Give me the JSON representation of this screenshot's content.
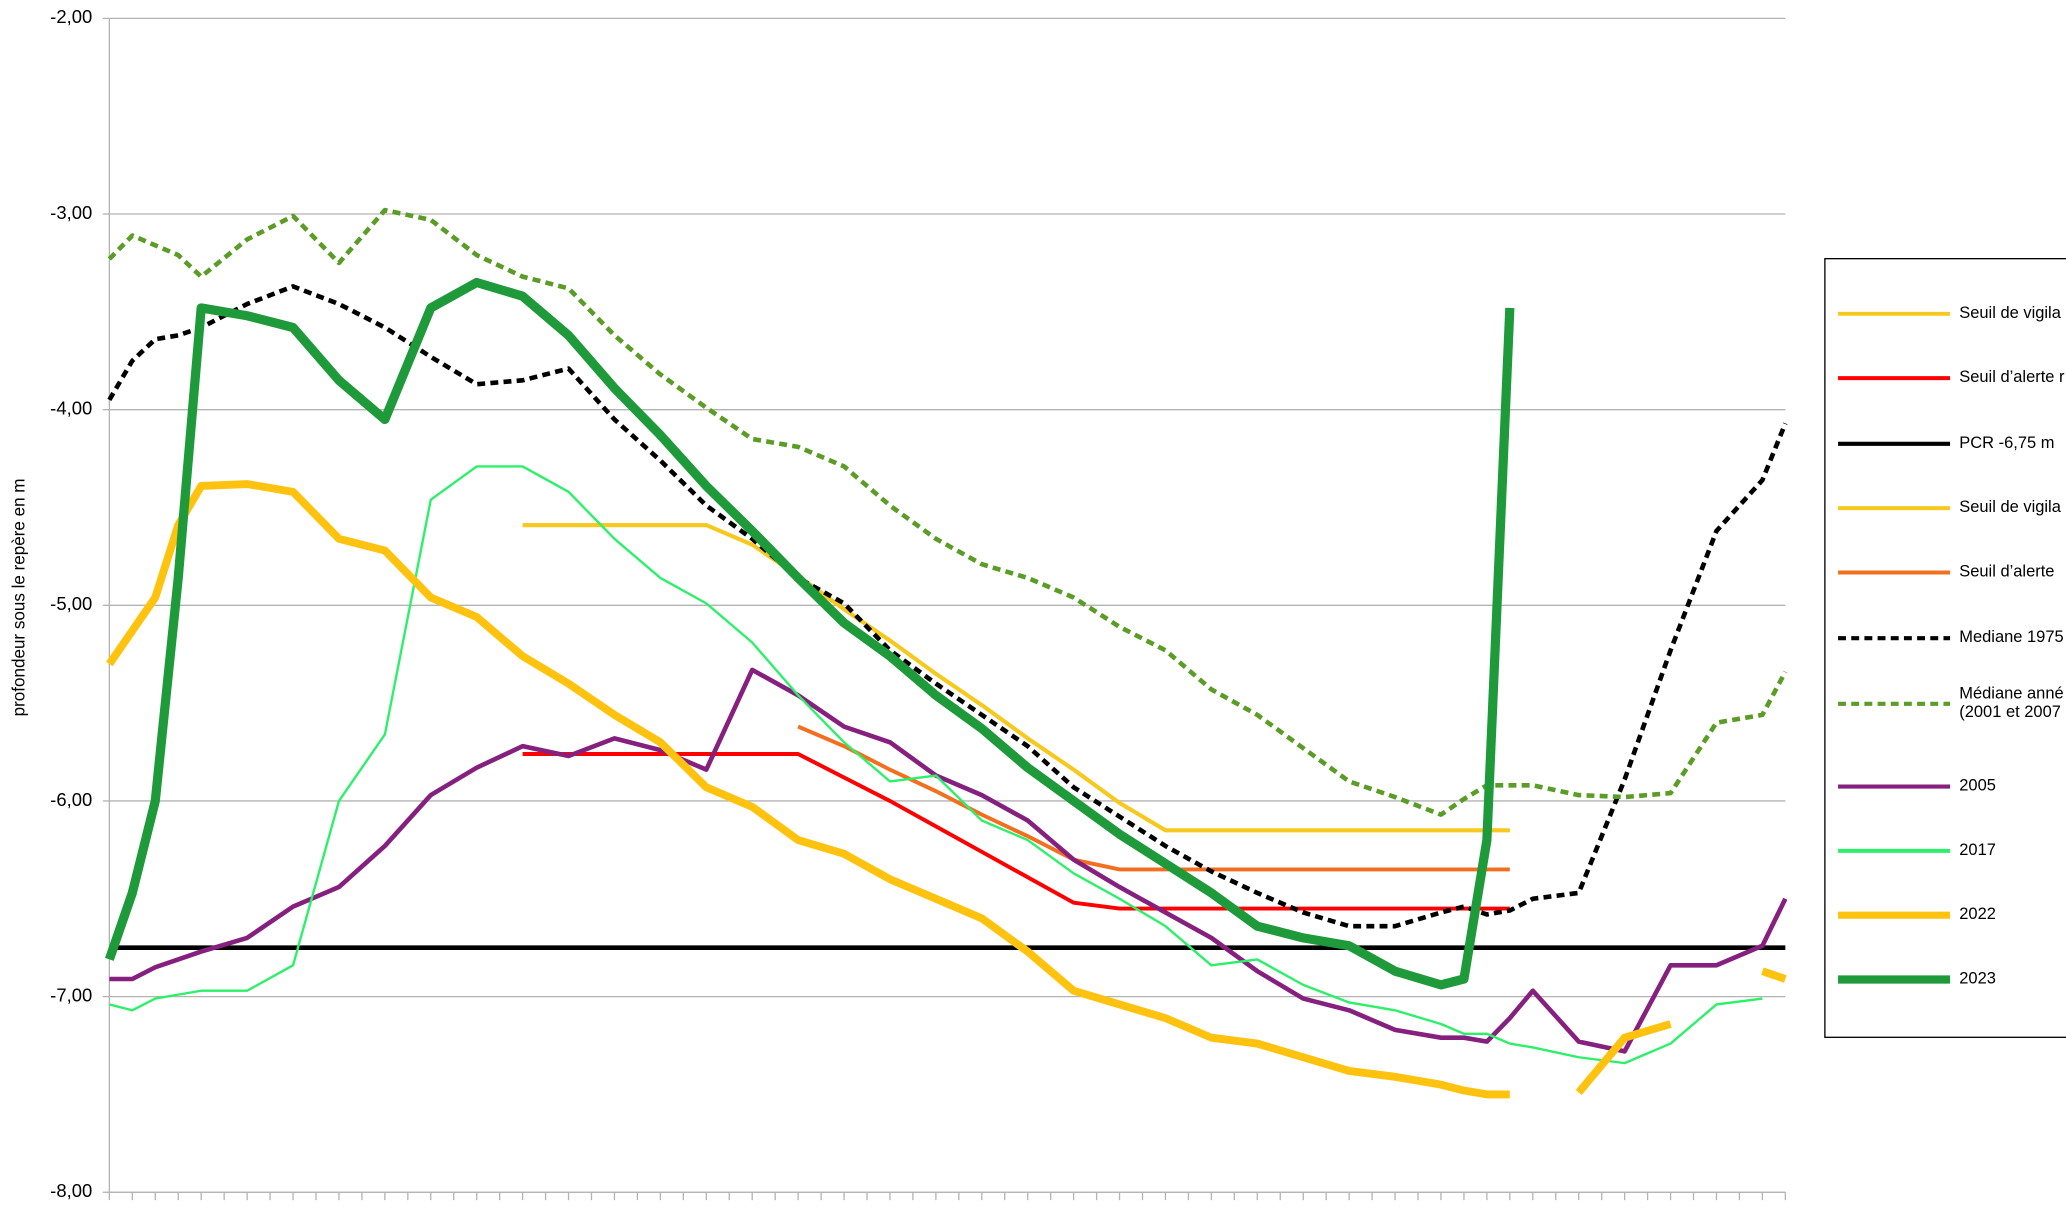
{
  "chart_data": {
    "type": "line",
    "y_label": "profondeur sous le repère en m",
    "x": [
      0,
      5,
      10,
      15,
      20,
      30,
      40,
      50,
      60,
      70,
      80,
      90,
      100,
      110,
      120,
      130,
      140,
      150,
      160,
      170,
      180,
      190,
      200,
      210,
      220,
      230,
      240,
      250,
      260,
      270,
      280,
      290,
      295,
      300,
      305,
      310,
      320,
      330,
      340,
      350,
      360,
      365
    ],
    "xlim": [
      0,
      365
    ],
    "xticks": [
      0,
      5,
      10,
      15,
      20,
      25,
      30,
      35,
      40,
      45,
      50,
      55,
      60,
      65,
      70,
      75,
      80,
      85,
      90,
      95,
      100,
      105,
      110,
      115,
      120,
      125,
      130,
      135,
      140,
      145,
      150,
      155,
      160,
      165,
      170,
      175,
      180,
      185,
      190,
      195,
      200,
      205,
      210,
      215,
      220,
      225,
      230,
      235,
      240,
      245,
      250,
      255,
      260,
      265,
      270,
      275,
      280,
      285,
      290,
      295,
      300,
      305,
      310,
      315,
      320,
      325,
      330,
      335,
      340,
      345,
      350,
      355,
      360,
      365
    ],
    "ylim": [
      -8,
      -2
    ],
    "yticks": [
      {
        "value": -8,
        "label": "-8,00"
      },
      {
        "value": -7,
        "label": "-7,00"
      },
      {
        "value": -6,
        "label": "-6,00"
      },
      {
        "value": -5,
        "label": "-5,00"
      },
      {
        "value": -4,
        "label": "-4,00"
      },
      {
        "value": -3,
        "label": "-3,00"
      },
      {
        "value": -2,
        "label": "-2,00"
      }
    ],
    "grid": true,
    "legend_position": "right",
    "series": [
      {
        "name": "Seuil de vigila",
        "color": "#f7c81e",
        "values": [
          null,
          null,
          null,
          null,
          null,
          null,
          null,
          null,
          null,
          null,
          null,
          -4.59,
          -4.59,
          -4.59,
          -4.59,
          -4.59,
          -4.69,
          -4.85,
          -5.02,
          -5.18,
          -5.35,
          -5.51,
          -5.68,
          -5.84,
          -6.01,
          -6.15,
          -6.15,
          -6.15,
          -6.15,
          -6.15,
          -6.15,
          -6.15,
          -6.15,
          -6.15,
          -6.15,
          null,
          null,
          null,
          null,
          null,
          null,
          null
        ]
      },
      {
        "name": "Seuil d’alerte r",
        "color": "#ff0000",
        "values": [
          null,
          null,
          null,
          null,
          null,
          null,
          null,
          null,
          null,
          null,
          null,
          -5.76,
          -5.76,
          -5.76,
          -5.76,
          -5.76,
          -5.76,
          -5.76,
          -5.88,
          -6.0,
          -6.13,
          -6.26,
          -6.39,
          -6.52,
          -6.55,
          -6.55,
          -6.55,
          -6.55,
          -6.55,
          -6.55,
          -6.55,
          -6.55,
          -6.55,
          -6.55,
          -6.55,
          null,
          null,
          null,
          null,
          null,
          null,
          null
        ]
      },
      {
        "name": "PCR -6,75 m",
        "color": "#000000",
        "values": [
          -6.75,
          -6.75,
          -6.75,
          -6.75,
          -6.75,
          -6.75,
          -6.75,
          -6.75,
          -6.75,
          -6.75,
          -6.75,
          -6.75,
          -6.75,
          -6.75,
          -6.75,
          -6.75,
          -6.75,
          -6.75,
          -6.75,
          -6.75,
          -6.75,
          -6.75,
          -6.75,
          -6.75,
          -6.75,
          -6.75,
          -6.75,
          -6.75,
          -6.75,
          -6.75,
          -6.75,
          -6.75,
          -6.75,
          -6.75,
          -6.75,
          -6.75,
          -6.75,
          -6.75,
          -6.75,
          -6.75,
          -6.75,
          -6.75
        ]
      },
      {
        "name": "Seuil de vigila",
        "color": "#f7c81e",
        "values": [
          null,
          null,
          null,
          null,
          null,
          null,
          null,
          null,
          null,
          null,
          null,
          -4.59,
          -4.59,
          -4.59,
          -4.59,
          -4.59,
          -4.69,
          -4.85,
          -5.02,
          -5.18,
          -5.35,
          -5.51,
          -5.68,
          -5.84,
          -6.01,
          -6.15,
          -6.15,
          -6.15,
          -6.15,
          -6.15,
          -6.15,
          -6.15,
          -6.15,
          -6.15,
          -6.15,
          null,
          null,
          null,
          null,
          null,
          null,
          null
        ]
      },
      {
        "name": "Seuil d’alerte",
        "color": "#f36f20",
        "values": [
          null,
          null,
          null,
          null,
          null,
          null,
          null,
          null,
          null,
          null,
          null,
          null,
          null,
          null,
          null,
          null,
          null,
          -5.62,
          -5.72,
          -5.84,
          -5.95,
          -6.07,
          -6.18,
          -6.3,
          -6.35,
          -6.35,
          -6.35,
          -6.35,
          -6.35,
          -6.35,
          -6.35,
          -6.35,
          -6.35,
          -6.35,
          -6.35,
          null,
          null,
          null,
          null,
          null,
          null,
          null
        ]
      },
      {
        "name": "Mediane 1975",
        "color": "#000000",
        "style": "dashed",
        "values": [
          -3.95,
          -3.75,
          -3.64,
          -3.62,
          -3.58,
          -3.46,
          -3.37,
          -3.46,
          -3.58,
          -3.73,
          -3.87,
          -3.85,
          -3.79,
          -4.05,
          -4.26,
          -4.49,
          -4.66,
          -4.86,
          -4.99,
          -5.23,
          -5.4,
          -5.56,
          -5.72,
          -5.93,
          -6.08,
          -6.23,
          -6.36,
          -6.47,
          -6.57,
          -6.64,
          -6.64,
          -6.57,
          -6.54,
          -6.58,
          -6.56,
          -6.5,
          -6.47,
          -5.89,
          -5.23,
          -4.62,
          -4.36,
          -4.07
        ]
      },
      {
        "name": "Médiane anné\n(2001 et 2007",
        "color": "#5a9c25",
        "style": "dashed",
        "values": [
          -3.23,
          -3.11,
          -3.16,
          -3.21,
          -3.32,
          -3.13,
          -3.01,
          -3.25,
          -2.98,
          -3.03,
          -3.21,
          -3.32,
          -3.38,
          -3.62,
          -3.82,
          -3.99,
          -4.15,
          -4.19,
          -4.29,
          -4.49,
          -4.66,
          -4.79,
          -4.86,
          -4.96,
          -5.11,
          -5.23,
          -5.43,
          -5.56,
          -5.73,
          -5.9,
          -5.98,
          -6.07,
          -5.99,
          -5.92,
          -5.92,
          -5.92,
          -5.97,
          -5.98,
          -5.96,
          -5.6,
          -5.56,
          -5.34
        ]
      },
      {
        "name": "2005",
        "color": "#86207e",
        "values": [
          -6.91,
          -6.91,
          -6.85,
          -6.81,
          -6.77,
          -6.7,
          -6.54,
          -6.44,
          -6.23,
          -5.97,
          -5.83,
          -5.72,
          -5.77,
          -5.68,
          -5.74,
          -5.84,
          -5.33,
          -5.46,
          -5.62,
          -5.7,
          -5.87,
          -5.97,
          -6.1,
          -6.3,
          -6.44,
          -6.57,
          -6.7,
          -6.87,
          -7.01,
          -7.07,
          -7.17,
          -7.21,
          -7.21,
          -7.23,
          -7.11,
          -6.97,
          -7.23,
          -7.28,
          -6.84,
          -6.84,
          -6.74,
          -6.5
        ]
      },
      {
        "name": "2017",
        "color": "#2df06a",
        "values": [
          -7.04,
          -7.07,
          -7.01,
          -6.99,
          -6.97,
          -6.97,
          -6.84,
          -6.0,
          -5.66,
          -4.46,
          -4.29,
          -4.29,
          -4.42,
          -4.66,
          -4.86,
          -4.99,
          -5.19,
          -5.46,
          -5.7,
          -5.9,
          -5.87,
          -6.1,
          -6.2,
          -6.37,
          -6.5,
          -6.64,
          -6.84,
          -6.81,
          -6.94,
          -7.03,
          -7.07,
          -7.14,
          -7.19,
          -7.19,
          -7.24,
          -7.26,
          -7.31,
          -7.34,
          -7.24,
          -7.04,
          -7.01,
          null
        ]
      },
      {
        "name": "2022",
        "color": "#ffc20e",
        "values": [
          -5.3,
          -5.13,
          -4.96,
          -4.59,
          -4.39,
          -4.38,
          -4.42,
          -4.66,
          -4.72,
          -4.96,
          -5.06,
          -5.26,
          -5.4,
          -5.56,
          -5.7,
          -5.93,
          -6.03,
          -6.2,
          -6.27,
          -6.4,
          -6.5,
          -6.6,
          -6.77,
          -6.97,
          -7.04,
          -7.11,
          -7.21,
          -7.24,
          -7.31,
          -7.38,
          -7.41,
          -7.45,
          -7.48,
          -7.5,
          -7.5,
          null,
          -7.49,
          -7.21,
          -7.14,
          null,
          -6.87,
          -6.91
        ]
      },
      {
        "name": "2023",
        "color": "#1f9a3a",
        "values": [
          -6.81,
          -6.47,
          -6.0,
          -4.86,
          -3.48,
          -3.52,
          -3.58,
          -3.85,
          -4.05,
          -3.48,
          -3.35,
          -3.42,
          -3.62,
          -3.89,
          -4.13,
          -4.39,
          -4.62,
          -4.86,
          -5.09,
          -5.26,
          -5.46,
          -5.63,
          -5.83,
          -6.0,
          -6.17,
          -6.32,
          -6.47,
          -6.64,
          -6.7,
          -6.74,
          -6.87,
          -6.94,
          -6.91,
          -6.2,
          -3.48,
          null,
          null,
          null,
          null,
          null,
          null,
          null
        ]
      }
    ]
  }
}
